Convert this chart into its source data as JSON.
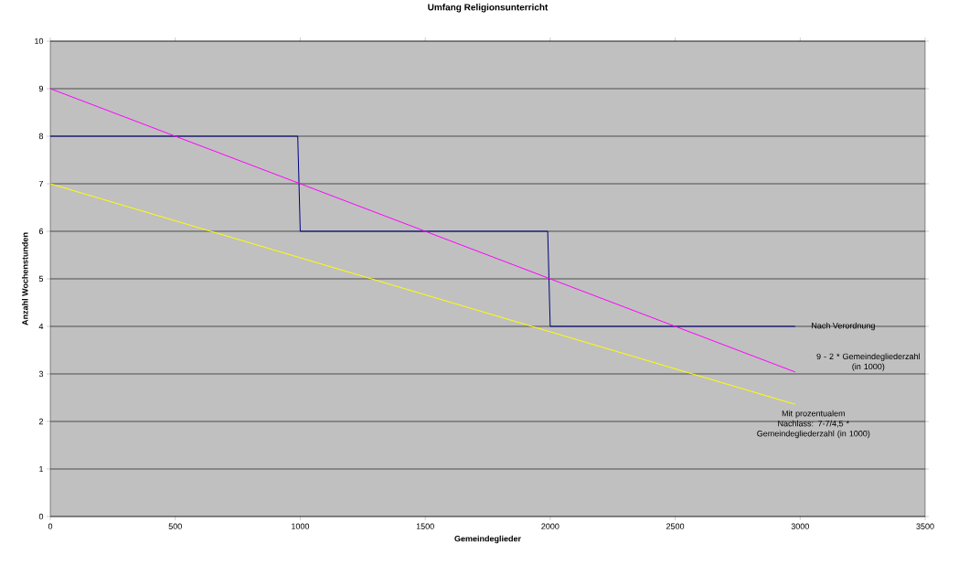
{
  "chart_data": {
    "type": "line",
    "title": "Umfang Religionsunterricht",
    "xlabel": "Gemeindeglieder",
    "ylabel": "Anzahl Wochenstunden",
    "series": [
      {
        "name": "Nach Verordnung",
        "color": "#000080",
        "x": [
          0,
          990,
          1000,
          1990,
          2000,
          2980
        ],
        "values": [
          8,
          8,
          6,
          6,
          4,
          4
        ]
      },
      {
        "name": "9 - 2 * Gemeindegliederzahl (in 1000)",
        "color": "#ff00ff",
        "x": [
          0,
          2980
        ],
        "values": [
          9,
          3.04
        ]
      },
      {
        "name": "Mit prozentualem Nachlass: 7-7/4,5 * Gemeindegliederzahl (in 1000)",
        "color": "#ffff00",
        "x": [
          0,
          2980
        ],
        "values": [
          7,
          2.36
        ]
      }
    ],
    "xlim": [
      0,
      3500
    ],
    "xticks": [
      0,
      500,
      1000,
      1500,
      2000,
      2500,
      3000,
      3500
    ],
    "ylim": [
      0,
      10
    ],
    "yticks": [
      0,
      1,
      2,
      3,
      4,
      5,
      6,
      7,
      8,
      9,
      10
    ],
    "grid": "y",
    "marker": "none",
    "line_style": "solid"
  }
}
